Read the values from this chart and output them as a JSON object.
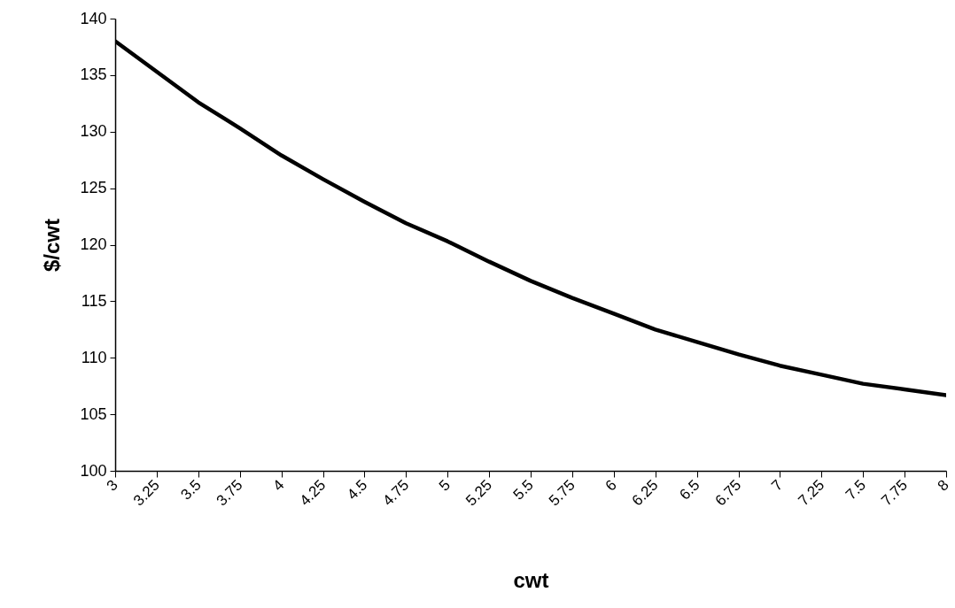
{
  "chart_data": {
    "type": "line",
    "xlabel": "cwt",
    "ylabel": "$/cwt",
    "x": [
      3,
      3.25,
      3.5,
      3.75,
      4,
      4.25,
      4.5,
      4.75,
      5,
      5.25,
      5.5,
      5.75,
      6,
      6.25,
      6.5,
      6.75,
      7,
      7.25,
      7.5,
      7.75,
      8
    ],
    "series": [
      {
        "color": "#000000",
        "values": [
          138,
          135.3,
          132.6,
          130.3,
          127.9,
          125.8,
          123.8,
          121.9,
          120.3,
          118.5,
          116.8,
          115.3,
          113.9,
          112.5,
          111.4,
          110.3,
          109.3,
          108.5,
          107.7,
          107.2,
          106.7
        ]
      }
    ],
    "xlim": [
      3,
      8
    ],
    "xticks": [
      3,
      3.25,
      3.5,
      3.75,
      4,
      4.25,
      4.5,
      4.75,
      5,
      5.25,
      5.5,
      5.75,
      6,
      6.25,
      6.5,
      6.75,
      7,
      7.25,
      7.5,
      7.75,
      8
    ],
    "ylim": [
      100,
      140
    ],
    "yticks": [
      100,
      105,
      110,
      115,
      120,
      125,
      130,
      135,
      140
    ],
    "grid": false,
    "legend": false,
    "marker": "none",
    "line_style": "solid"
  }
}
